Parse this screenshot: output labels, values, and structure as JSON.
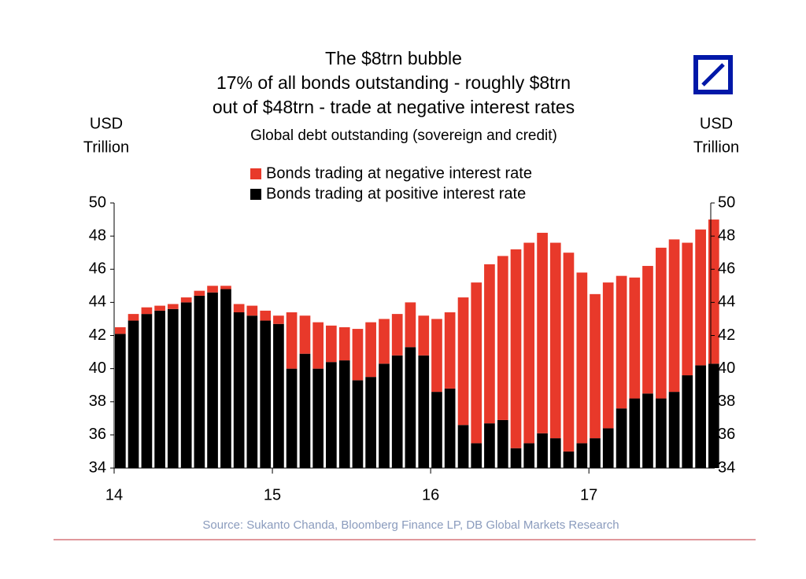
{
  "chart_data": {
    "type": "stacked_bar",
    "title": [
      "The $8trn bubble",
      "17% of all bonds outstanding - roughly $8trn",
      "out of $48trn - trade at negative interest rates"
    ],
    "subtitle": "Global debt outstanding (sovereign and credit)",
    "y_label": [
      "USD",
      "Trillion"
    ],
    "y2_label": [
      "USD",
      "Trillion"
    ],
    "source": "Source: Sukanto Chanda, Bloomberg Finance LP, DB Global Markets Research",
    "x": [
      14,
      14.083,
      14.167,
      14.25,
      14.333,
      14.417,
      14.5,
      14.583,
      14.667,
      14.75,
      14.833,
      14.917,
      15,
      15.083,
      15.167,
      15.25,
      15.333,
      15.417,
      15.5,
      15.583,
      15.667,
      15.75,
      15.833,
      15.917,
      16,
      16.083,
      16.167,
      16.25,
      16.333,
      16.417,
      16.5,
      16.583,
      16.667,
      16.75,
      16.833,
      16.917,
      17,
      17.083,
      17.167,
      17.25,
      17.333,
      17.417,
      17.5,
      17.583,
      17.667,
      17.75
    ],
    "series": [
      {
        "name": "Bonds trading at positive interest rate",
        "color": "#000000",
        "values": [
          42.1,
          42.9,
          43.3,
          43.5,
          43.6,
          44.0,
          44.4,
          44.6,
          44.8,
          43.4,
          43.2,
          42.9,
          42.7,
          40.0,
          40.9,
          40.0,
          40.4,
          40.5,
          39.3,
          39.5,
          40.3,
          40.8,
          41.3,
          40.8,
          38.6,
          38.8,
          36.6,
          35.5,
          36.7,
          36.9,
          35.2,
          35.5,
          36.1,
          35.8,
          35.0,
          35.5,
          35.8,
          36.4,
          37.6,
          38.2,
          38.5,
          38.2,
          38.6,
          39.6,
          40.2,
          40.3
        ]
      },
      {
        "name": "Bonds trading at negative interest rate",
        "color": "#e8392a",
        "values": [
          0.4,
          0.4,
          0.4,
          0.3,
          0.3,
          0.3,
          0.3,
          0.4,
          0.2,
          0.5,
          0.6,
          0.6,
          0.5,
          3.4,
          2.3,
          2.8,
          2.2,
          2.0,
          3.1,
          3.3,
          2.7,
          2.5,
          2.7,
          2.4,
          4.4,
          4.6,
          7.7,
          9.7,
          9.6,
          9.9,
          12.0,
          12.1,
          12.1,
          11.8,
          12.0,
          10.3,
          8.7,
          8.8,
          8.0,
          7.3,
          7.7,
          9.1,
          9.2,
          8.0,
          8.2,
          8.7
        ]
      }
    ],
    "xlim": [
      14,
      17.77
    ],
    "xticks": [
      14,
      15,
      16,
      17
    ],
    "ylim": [
      34,
      50
    ],
    "yticks": [
      34,
      36,
      38,
      40,
      42,
      44,
      46,
      48,
      50
    ],
    "y2lim": [
      34,
      50
    ],
    "y2ticks": [
      34,
      36,
      38,
      40,
      42,
      44,
      46,
      48,
      50
    ]
  }
}
